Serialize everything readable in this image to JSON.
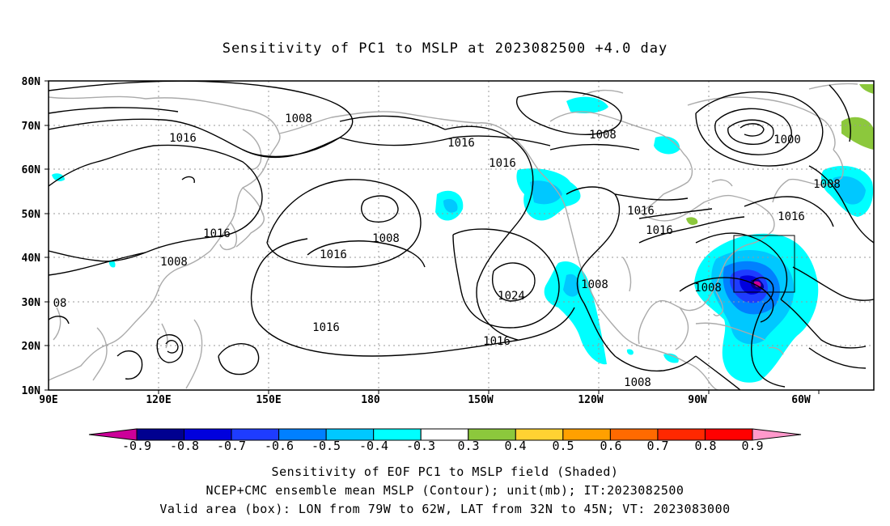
{
  "title": "Sensitivity of PC1 to MSLP at 2023082500 +4.0 day",
  "map": {
    "lon_labels": [
      "90E",
      "120E",
      "150E",
      "180",
      "150W",
      "120W",
      "90W",
      "60W"
    ],
    "lat_labels": [
      "80N",
      "70N",
      "60N",
      "50N",
      "40N",
      "30N",
      "20N",
      "10N"
    ],
    "box": {
      "lon_from": "79W",
      "lon_to": "62W",
      "lat_from": "32N",
      "lat_to": "45N"
    },
    "contour_labels": [
      "1008",
      "1016",
      "1008",
      "1016",
      "1000",
      "1016",
      "1016",
      "1016",
      "1008",
      "1016",
      "1016",
      "1008",
      "1016",
      "1024",
      "1016",
      "1008",
      "1016",
      "1008",
      "1008",
      "1008",
      "1016",
      "1008",
      "08"
    ],
    "colors": {
      "land_outline": "#aaaaaa",
      "contour": "#000000",
      "grid": "#999999"
    }
  },
  "colorbar": {
    "labels": [
      "-0.9",
      "-0.8",
      "-0.7",
      "-0.6",
      "-0.5",
      "-0.4",
      "-0.3",
      "0.3",
      "0.4",
      "0.5",
      "0.6",
      "0.7",
      "0.8",
      "0.9"
    ],
    "colors": [
      "#cc0099",
      "#000090",
      "#0000dd",
      "#1e3cff",
      "#0080ff",
      "#00c8ff",
      "#00ffff",
      "#ffffff",
      "#8cc83c",
      "#ffd232",
      "#ffa000",
      "#ff6a00",
      "#ff2800",
      "#ff0000",
      "#ff99cc"
    ]
  },
  "captions": {
    "line1": "Sensitivity of EOF PC1 to MSLP field (Shaded)",
    "line2": "NCEP+CMC ensemble mean MSLP (Contour); unit(mb); IT:2023082500",
    "line3": "Valid area (box): LON from 79W to 62W, LAT from 32N to 45N; VT: 2023083000"
  }
}
